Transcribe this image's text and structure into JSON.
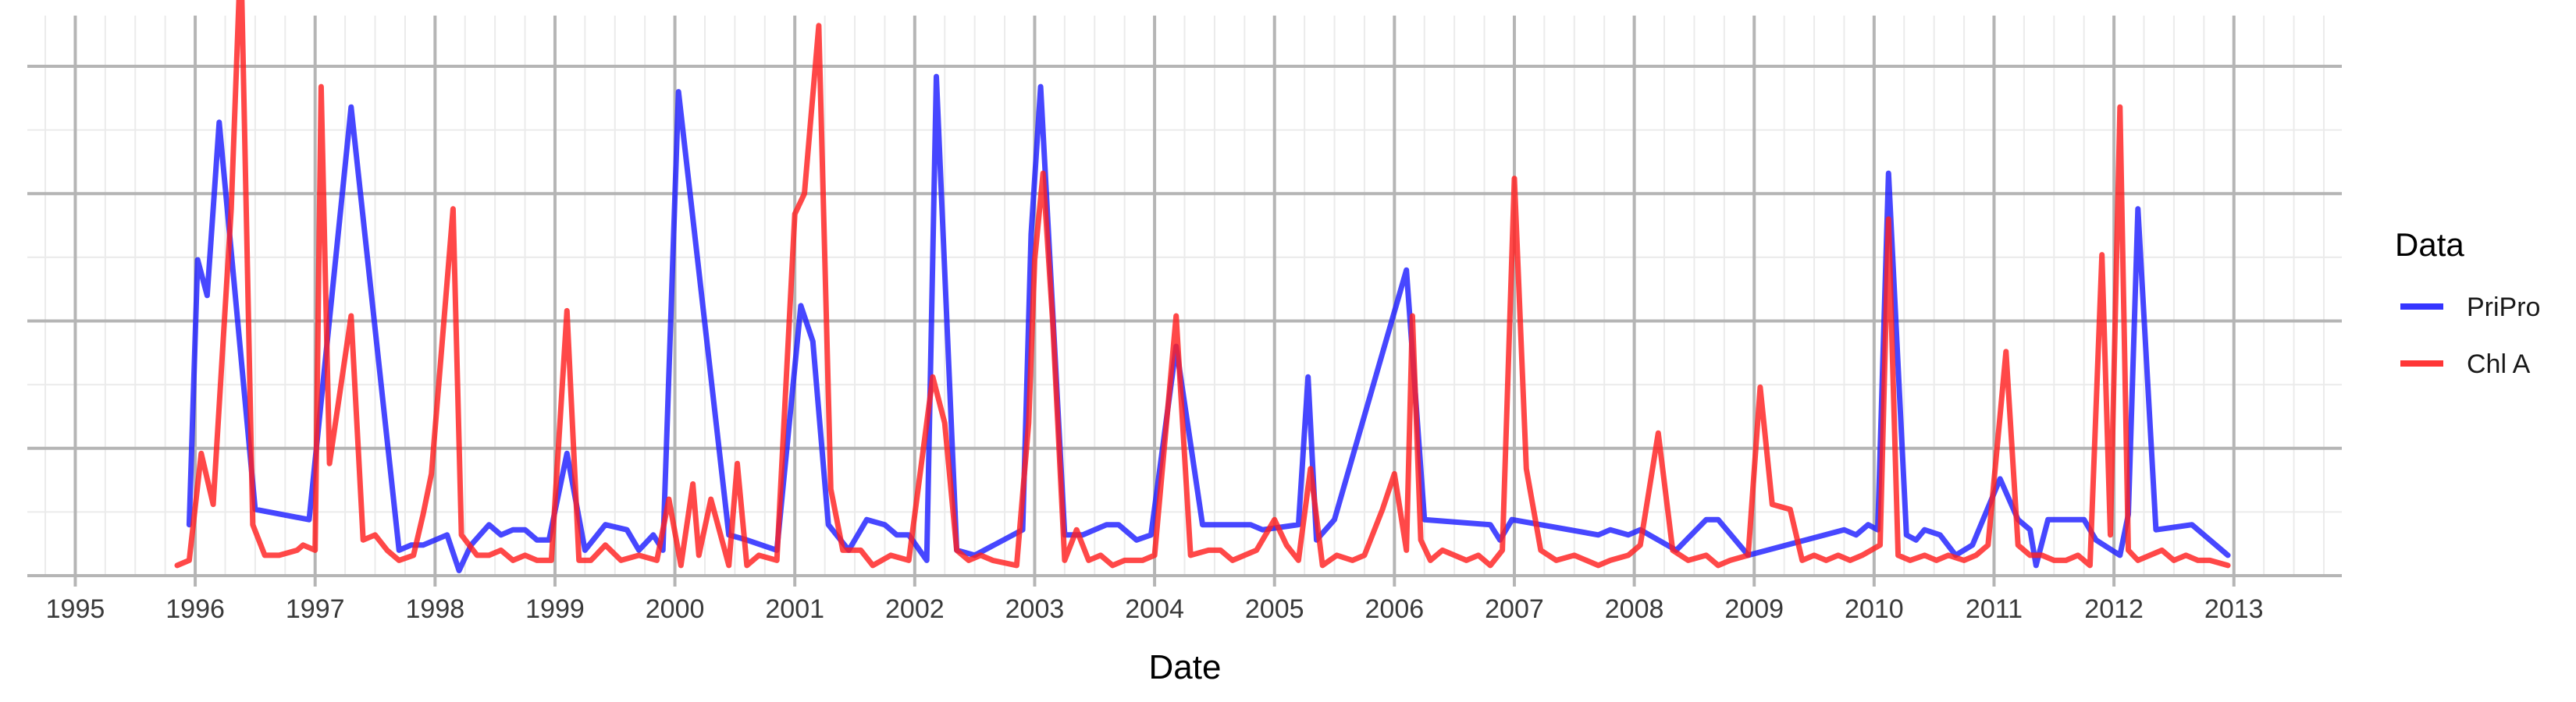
{
  "chart_data": {
    "type": "line",
    "title": "",
    "xlabel": "Date",
    "ylabel": "",
    "xlim": [
      1994.6,
      2013.9
    ],
    "ylim": [
      0,
      1
    ],
    "y_tick_labels_shown": false,
    "x_ticks": [
      1995,
      1996,
      1997,
      1998,
      1999,
      2000,
      2001,
      2002,
      2003,
      2004,
      2005,
      2006,
      2007,
      2008,
      2009,
      2010,
      2011,
      2012,
      2013
    ],
    "x_tick_labels": [
      "1995",
      "1996",
      "1997",
      "1998",
      "1999",
      "2000",
      "2001",
      "2002",
      "2003",
      "2004",
      "2005",
      "2006",
      "2007",
      "2008",
      "2009",
      "2010",
      "2011",
      "2012",
      "2013"
    ],
    "grid": true,
    "legend": {
      "title": "Data",
      "position": "right"
    },
    "series": [
      {
        "name": "PriPro",
        "color": "#1f1fff",
        "x": [
          1995.95,
          1996.02,
          1996.1,
          1996.2,
          1996.5,
          1996.95,
          1997.3,
          1997.7,
          1997.8,
          1997.9,
          1998.1,
          1998.2,
          1998.3,
          1998.45,
          1998.55,
          1998.65,
          1998.75,
          1998.85,
          1998.95,
          1999.1,
          1999.25,
          1999.42,
          1999.6,
          1999.7,
          1999.82,
          1999.9,
          2000.03,
          2000.45,
          2000.6,
          2000.85,
          2001.05,
          2001.15,
          2001.28,
          2001.45,
          2001.6,
          2001.75,
          2001.85,
          2001.95,
          2002.1,
          2002.18,
          2002.35,
          2002.5,
          2002.9,
          2002.97,
          2003.05,
          2003.25,
          2003.4,
          2003.6,
          2003.7,
          2003.85,
          2003.97,
          2004.18,
          2004.4,
          2004.8,
          2004.9,
          2005.2,
          2005.28,
          2005.35,
          2005.5,
          2006.1,
          2006.25,
          2006.8,
          2006.88,
          2006.98,
          2007.7,
          2007.8,
          2007.95,
          2008.05,
          2008.35,
          2008.6,
          2008.7,
          2008.95,
          2009.75,
          2009.85,
          2009.95,
          2010.03,
          2010.12,
          2010.27,
          2010.35,
          2010.42,
          2010.55,
          2010.68,
          2010.82,
          2011.05,
          2011.2,
          2011.3,
          2011.35,
          2011.45,
          2011.75,
          2011.85,
          2012.05,
          2012.12,
          2012.2,
          2012.35,
          2012.65,
          2012.95
        ],
        "values": [
          0.1,
          0.62,
          0.55,
          0.89,
          0.13,
          0.11,
          0.92,
          0.05,
          0.06,
          0.06,
          0.08,
          0.01,
          0.06,
          0.1,
          0.08,
          0.09,
          0.09,
          0.07,
          0.07,
          0.24,
          0.05,
          0.1,
          0.09,
          0.05,
          0.08,
          0.05,
          0.95,
          0.08,
          0.07,
          0.05,
          0.53,
          0.46,
          0.1,
          0.05,
          0.11,
          0.1,
          0.08,
          0.08,
          0.03,
          0.98,
          0.05,
          0.04,
          0.09,
          0.67,
          0.96,
          0.08,
          0.08,
          0.1,
          0.1,
          0.07,
          0.08,
          0.45,
          0.1,
          0.1,
          0.09,
          0.1,
          0.39,
          0.07,
          0.11,
          0.6,
          0.11,
          0.1,
          0.07,
          0.11,
          0.08,
          0.09,
          0.08,
          0.09,
          0.05,
          0.11,
          0.11,
          0.04,
          0.09,
          0.08,
          0.1,
          0.09,
          0.79,
          0.08,
          0.07,
          0.09,
          0.08,
          0.04,
          0.06,
          0.19,
          0.11,
          0.09,
          0.02,
          0.11,
          0.11,
          0.07,
          0.04,
          0.12,
          0.72,
          0.09,
          0.1,
          0.04
        ]
      },
      {
        "name": "Chl A",
        "color": "#ff2020",
        "x": [
          1995.85,
          1995.95,
          1996.05,
          1996.15,
          1996.3,
          1996.38,
          1996.48,
          1996.58,
          1996.7,
          1996.85,
          1996.9,
          1997.0,
          1997.05,
          1997.12,
          1997.3,
          1997.4,
          1997.5,
          1997.6,
          1997.7,
          1997.82,
          1997.9,
          1997.97,
          1998.15,
          1998.22,
          1998.35,
          1998.45,
          1998.55,
          1998.65,
          1998.75,
          1998.85,
          1998.97,
          1999.1,
          1999.2,
          1999.3,
          1999.42,
          1999.55,
          1999.7,
          1999.85,
          1999.95,
          2000.05,
          2000.15,
          2000.2,
          2000.3,
          2000.45,
          2000.52,
          2000.6,
          2000.7,
          2000.85,
          2001.0,
          2001.08,
          2001.2,
          2001.3,
          2001.4,
          2001.55,
          2001.65,
          2001.8,
          2001.95,
          2002.15,
          2002.25,
          2002.35,
          2002.45,
          2002.55,
          2002.65,
          2002.85,
          2002.95,
          2003.0,
          2003.07,
          2003.15,
          2003.25,
          2003.35,
          2003.45,
          2003.55,
          2003.65,
          2003.75,
          2003.9,
          2004.0,
          2004.18,
          2004.3,
          2004.45,
          2004.55,
          2004.65,
          2004.75,
          2004.85,
          2005.0,
          2005.1,
          2005.2,
          2005.3,
          2005.4,
          2005.52,
          2005.65,
          2005.75,
          2005.9,
          2006.0,
          2006.1,
          2006.15,
          2006.22,
          2006.3,
          2006.4,
          2006.5,
          2006.6,
          2006.7,
          2006.8,
          2006.9,
          2007.0,
          2007.1,
          2007.22,
          2007.35,
          2007.5,
          2007.6,
          2007.7,
          2007.8,
          2007.95,
          2008.05,
          2008.2,
          2008.32,
          2008.45,
          2008.6,
          2008.7,
          2008.8,
          2008.95,
          2009.05,
          2009.15,
          2009.3,
          2009.4,
          2009.5,
          2009.6,
          2009.7,
          2009.8,
          2009.9,
          2010.05,
          2010.12,
          2010.2,
          2010.3,
          2010.42,
          2010.52,
          2010.62,
          2010.75,
          2010.85,
          2010.95,
          2011.1,
          2011.2,
          2011.3,
          2011.4,
          2011.5,
          2011.6,
          2011.7,
          2011.8,
          2011.9,
          2011.97,
          2012.05,
          2012.12,
          2012.2,
          2012.3,
          2012.4,
          2012.5,
          2012.6,
          2012.7,
          2012.8,
          2012.95
        ],
        "values": [
          0.02,
          0.03,
          0.24,
          0.14,
          0.72,
          1.23,
          0.1,
          0.04,
          0.04,
          0.05,
          0.06,
          0.05,
          0.96,
          0.22,
          0.51,
          0.07,
          0.08,
          0.05,
          0.03,
          0.04,
          0.12,
          0.2,
          0.72,
          0.08,
          0.04,
          0.04,
          0.05,
          0.03,
          0.04,
          0.03,
          0.03,
          0.52,
          0.03,
          0.03,
          0.06,
          0.03,
          0.04,
          0.03,
          0.15,
          0.02,
          0.18,
          0.04,
          0.15,
          0.02,
          0.22,
          0.02,
          0.04,
          0.03,
          0.71,
          0.75,
          1.08,
          0.17,
          0.05,
          0.05,
          0.02,
          0.04,
          0.03,
          0.39,
          0.3,
          0.05,
          0.03,
          0.04,
          0.03,
          0.02,
          0.3,
          0.62,
          0.79,
          0.5,
          0.03,
          0.09,
          0.03,
          0.04,
          0.02,
          0.03,
          0.03,
          0.04,
          0.51,
          0.04,
          0.05,
          0.05,
          0.03,
          0.04,
          0.05,
          0.11,
          0.06,
          0.03,
          0.21,
          0.02,
          0.04,
          0.03,
          0.04,
          0.13,
          0.2,
          0.05,
          0.51,
          0.07,
          0.03,
          0.05,
          0.04,
          0.03,
          0.04,
          0.02,
          0.05,
          0.78,
          0.21,
          0.05,
          0.03,
          0.04,
          0.03,
          0.02,
          0.03,
          0.04,
          0.06,
          0.28,
          0.05,
          0.03,
          0.04,
          0.02,
          0.03,
          0.04,
          0.37,
          0.14,
          0.13,
          0.03,
          0.04,
          0.03,
          0.04,
          0.03,
          0.04,
          0.06,
          0.7,
          0.04,
          0.03,
          0.04,
          0.03,
          0.04,
          0.03,
          0.04,
          0.06,
          0.44,
          0.06,
          0.04,
          0.04,
          0.03,
          0.03,
          0.04,
          0.02,
          0.63,
          0.08,
          0.92,
          0.05,
          0.03,
          0.04,
          0.05,
          0.03,
          0.04,
          0.03,
          0.03,
          0.02
        ]
      }
    ]
  }
}
